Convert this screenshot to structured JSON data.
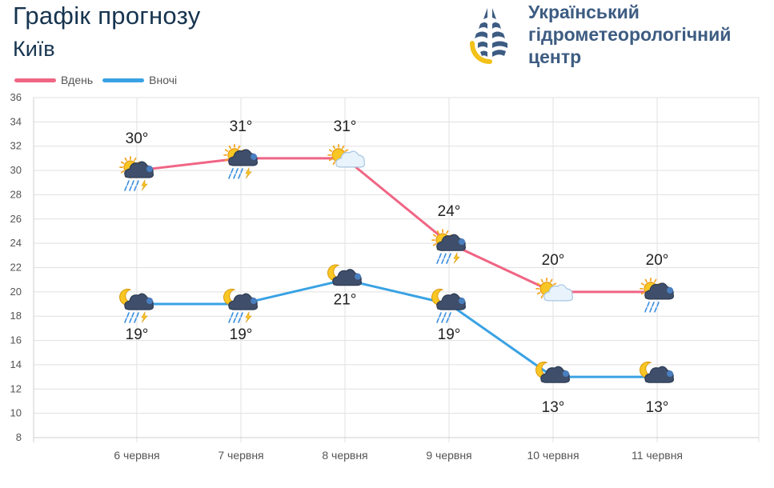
{
  "header": {
    "title": "Графік прогнозу",
    "city": "Київ"
  },
  "logo": {
    "line1": "Український",
    "line2": "гідрометеорологічний",
    "line3": "центр",
    "colors": {
      "text": "#3d5c82",
      "navy": "#3d5c82",
      "yellow": "#f2c21b"
    }
  },
  "colors": {
    "day": "#f06584",
    "night": "#3aa2e4",
    "grid": "#e0e0e0",
    "title": "#16344f"
  },
  "chart_data": {
    "type": "line",
    "categories": [
      "6 червня",
      "7 червня",
      "8 червня",
      "9 червня",
      "10 червня",
      "11 червня"
    ],
    "series": [
      {
        "name": "Вдень",
        "values": [
          30,
          31,
          31,
          24,
          20,
          20
        ],
        "labels": [
          "30°",
          "31°",
          "31°",
          "24°",
          "20°",
          "20°"
        ],
        "icons": [
          "sun-thunderstorm-rain-icon",
          "sun-thunderstorm-rain-icon",
          "sun-cloud-icon",
          "sun-thunderstorm-rain-icon",
          "sun-cloud-icon",
          "sun-cloud-rain-icon"
        ]
      },
      {
        "name": "Вночі",
        "values": [
          19,
          19,
          21,
          19,
          13,
          13
        ],
        "labels": [
          "19°",
          "19°",
          "21°",
          "19°",
          "13°",
          "13°"
        ],
        "icons": [
          "moon-thunderstorm-rain-icon",
          "moon-thunderstorm-rain-icon",
          "moon-cloud-icon",
          "moon-rain-icon",
          "moon-cloud-icon",
          "moon-cloud-icon"
        ]
      }
    ],
    "ylim": [
      8,
      36
    ],
    "yticks": [
      8,
      10,
      12,
      14,
      16,
      18,
      20,
      22,
      24,
      26,
      28,
      30,
      32,
      34,
      36
    ],
    "grid": true,
    "legend": "top-left"
  }
}
